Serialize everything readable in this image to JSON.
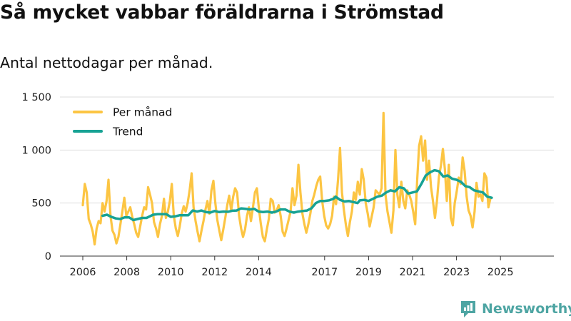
{
  "title": "Så mycket vabbar föräldrarna i Strömstad",
  "subtitle": "Antal nettodagar per månad.",
  "brand": {
    "name": "Newsworthy",
    "color": "#4ea5a3"
  },
  "colors": {
    "per_month": "#fcc543",
    "trend": "#17a294",
    "grid": "#dddddd",
    "axis": "#333333"
  },
  "chart_data": {
    "type": "line",
    "title": "Så mycket vabbar föräldrarna i Strömstad",
    "subtitle": "Antal nettodagar per månad.",
    "xlabel": "",
    "ylabel": "",
    "ylim": [
      0,
      1500
    ],
    "xlim": [
      2006,
      2025.8
    ],
    "yticks": [
      0,
      500,
      1000,
      1500
    ],
    "ytick_labels": [
      "0",
      "500",
      "1 000",
      "1 500"
    ],
    "xticks": [
      2006,
      2008,
      2010,
      2012,
      2014,
      2017,
      2019,
      2021,
      2023,
      2025
    ],
    "xtick_labels": [
      "2006",
      "2008",
      "2010",
      "2012",
      "2014",
      "2017",
      "2019",
      "2021",
      "2023",
      "2025"
    ],
    "legend": {
      "placement": "top-left",
      "entries": [
        "Per månad",
        "Trend"
      ]
    },
    "grid": true,
    "series": [
      {
        "name": "Per månad",
        "color": "#fcc543",
        "points": [
          [
            2006.0,
            480
          ],
          [
            2006.09,
            680
          ],
          [
            2006.18,
            600
          ],
          [
            2006.27,
            350
          ],
          [
            2006.36,
            300
          ],
          [
            2006.45,
            230
          ],
          [
            2006.54,
            110
          ],
          [
            2006.63,
            260
          ],
          [
            2006.72,
            330
          ],
          [
            2006.81,
            310
          ],
          [
            2006.9,
            500
          ],
          [
            2006.99,
            420
          ],
          [
            2007.08,
            520
          ],
          [
            2007.17,
            720
          ],
          [
            2007.26,
            380
          ],
          [
            2007.35,
            240
          ],
          [
            2007.44,
            200
          ],
          [
            2007.53,
            120
          ],
          [
            2007.62,
            180
          ],
          [
            2007.71,
            300
          ],
          [
            2007.8,
            420
          ],
          [
            2007.89,
            550
          ],
          [
            2007.98,
            380
          ],
          [
            2008.07,
            420
          ],
          [
            2008.16,
            460
          ],
          [
            2008.25,
            370
          ],
          [
            2008.34,
            300
          ],
          [
            2008.43,
            220
          ],
          [
            2008.52,
            180
          ],
          [
            2008.61,
            280
          ],
          [
            2008.7,
            380
          ],
          [
            2008.79,
            460
          ],
          [
            2008.88,
            440
          ],
          [
            2008.97,
            650
          ],
          [
            2009.06,
            580
          ],
          [
            2009.15,
            500
          ],
          [
            2009.24,
            320
          ],
          [
            2009.33,
            260
          ],
          [
            2009.42,
            180
          ],
          [
            2009.51,
            300
          ],
          [
            2009.6,
            380
          ],
          [
            2009.69,
            540
          ],
          [
            2009.78,
            360
          ],
          [
            2009.87,
            420
          ],
          [
            2009.96,
            520
          ],
          [
            2010.05,
            680
          ],
          [
            2010.14,
            380
          ],
          [
            2010.23,
            260
          ],
          [
            2010.32,
            190
          ],
          [
            2010.41,
            280
          ],
          [
            2010.5,
            400
          ],
          [
            2010.59,
            470
          ],
          [
            2010.68,
            420
          ],
          [
            2010.77,
            500
          ],
          [
            2010.86,
            620
          ],
          [
            2010.95,
            780
          ],
          [
            2011.04,
            460
          ],
          [
            2011.13,
            330
          ],
          [
            2011.22,
            230
          ],
          [
            2011.31,
            140
          ],
          [
            2011.4,
            240
          ],
          [
            2011.49,
            330
          ],
          [
            2011.58,
            440
          ],
          [
            2011.67,
            520
          ],
          [
            2011.76,
            400
          ],
          [
            2011.85,
            620
          ],
          [
            2011.94,
            710
          ],
          [
            2012.03,
            500
          ],
          [
            2012.12,
            340
          ],
          [
            2012.21,
            240
          ],
          [
            2012.3,
            150
          ],
          [
            2012.39,
            250
          ],
          [
            2012.48,
            360
          ],
          [
            2012.57,
            480
          ],
          [
            2012.66,
            570
          ],
          [
            2012.75,
            430
          ],
          [
            2012.84,
            560
          ],
          [
            2012.93,
            640
          ],
          [
            2013.02,
            600
          ],
          [
            2013.11,
            380
          ],
          [
            2013.2,
            260
          ],
          [
            2013.29,
            180
          ],
          [
            2013.38,
            250
          ],
          [
            2013.47,
            380
          ],
          [
            2013.56,
            460
          ],
          [
            2013.65,
            330
          ],
          [
            2013.74,
            460
          ],
          [
            2013.83,
            600
          ],
          [
            2013.92,
            640
          ],
          [
            2014.01,
            450
          ],
          [
            2014.1,
            300
          ],
          [
            2014.19,
            180
          ],
          [
            2014.28,
            140
          ],
          [
            2014.37,
            250
          ],
          [
            2014.46,
            350
          ],
          [
            2014.55,
            540
          ],
          [
            2014.64,
            520
          ],
          [
            2014.73,
            410
          ],
          [
            2014.82,
            430
          ],
          [
            2014.91,
            480
          ],
          [
            2015.0,
            380
          ],
          [
            2015.09,
            230
          ],
          [
            2015.18,
            190
          ],
          [
            2015.27,
            260
          ],
          [
            2015.36,
            340
          ],
          [
            2015.45,
            420
          ],
          [
            2015.54,
            640
          ],
          [
            2015.63,
            480
          ],
          [
            2015.72,
            570
          ],
          [
            2015.81,
            860
          ],
          [
            2015.9,
            600
          ],
          [
            2015.99,
            400
          ],
          [
            2016.08,
            300
          ],
          [
            2016.17,
            220
          ],
          [
            2016.26,
            300
          ],
          [
            2016.35,
            400
          ],
          [
            2016.44,
            520
          ],
          [
            2016.53,
            580
          ],
          [
            2016.62,
            660
          ],
          [
            2016.71,
            720
          ],
          [
            2016.8,
            750
          ],
          [
            2016.89,
            520
          ],
          [
            2016.98,
            380
          ],
          [
            2017.07,
            290
          ],
          [
            2017.16,
            260
          ],
          [
            2017.25,
            300
          ],
          [
            2017.34,
            380
          ],
          [
            2017.43,
            560
          ],
          [
            2017.52,
            490
          ],
          [
            2017.61,
            720
          ],
          [
            2017.7,
            1020
          ],
          [
            2017.79,
            600
          ],
          [
            2017.88,
            430
          ],
          [
            2017.97,
            290
          ],
          [
            2018.06,
            190
          ],
          [
            2018.15,
            320
          ],
          [
            2018.24,
            420
          ],
          [
            2018.33,
            600
          ],
          [
            2018.42,
            530
          ],
          [
            2018.51,
            700
          ],
          [
            2018.6,
            580
          ],
          [
            2018.69,
            820
          ],
          [
            2018.78,
            720
          ],
          [
            2018.87,
            500
          ],
          [
            2018.96,
            400
          ],
          [
            2019.05,
            280
          ],
          [
            2019.14,
            370
          ],
          [
            2019.23,
            460
          ],
          [
            2019.32,
            620
          ],
          [
            2019.41,
            600
          ],
          [
            2019.5,
            580
          ],
          [
            2019.59,
            640
          ],
          [
            2019.68,
            1350
          ],
          [
            2019.77,
            580
          ],
          [
            2019.86,
            420
          ],
          [
            2019.95,
            320
          ],
          [
            2020.04,
            220
          ],
          [
            2020.13,
            430
          ],
          [
            2020.22,
            1000
          ],
          [
            2020.31,
            580
          ],
          [
            2020.4,
            460
          ],
          [
            2020.49,
            700
          ],
          [
            2020.58,
            520
          ],
          [
            2020.67,
            450
          ],
          [
            2020.76,
            620
          ],
          [
            2020.85,
            580
          ],
          [
            2020.94,
            520
          ],
          [
            2021.03,
            420
          ],
          [
            2021.12,
            300
          ],
          [
            2021.21,
            720
          ],
          [
            2021.3,
            1040
          ],
          [
            2021.39,
            1130
          ],
          [
            2021.48,
            900
          ],
          [
            2021.57,
            1090
          ],
          [
            2021.66,
            720
          ],
          [
            2021.75,
            900
          ],
          [
            2021.84,
            650
          ],
          [
            2021.93,
            520
          ],
          [
            2022.02,
            360
          ],
          [
            2022.11,
            520
          ],
          [
            2022.2,
            750
          ],
          [
            2022.29,
            850
          ],
          [
            2022.38,
            1010
          ],
          [
            2022.47,
            820
          ],
          [
            2022.56,
            520
          ],
          [
            2022.65,
            860
          ],
          [
            2022.74,
            360
          ],
          [
            2022.83,
            290
          ],
          [
            2022.92,
            500
          ],
          [
            2023.01,
            610
          ],
          [
            2023.1,
            740
          ],
          [
            2023.19,
            680
          ],
          [
            2023.28,
            930
          ],
          [
            2023.37,
            800
          ],
          [
            2023.46,
            560
          ],
          [
            2023.55,
            430
          ],
          [
            2023.64,
            380
          ],
          [
            2023.73,
            270
          ],
          [
            2023.82,
            420
          ],
          [
            2023.91,
            690
          ],
          [
            2024.0,
            560
          ],
          [
            2024.09,
            580
          ],
          [
            2024.18,
            520
          ],
          [
            2024.27,
            780
          ],
          [
            2024.36,
            740
          ],
          [
            2024.45,
            460
          ],
          [
            2024.54,
            540
          ]
        ]
      },
      {
        "name": "Trend",
        "color": "#17a294",
        "points": [
          [
            2006.9,
            380
          ],
          [
            2007.1,
            390
          ],
          [
            2007.3,
            370
          ],
          [
            2007.5,
            355
          ],
          [
            2007.7,
            350
          ],
          [
            2007.9,
            365
          ],
          [
            2008.1,
            365
          ],
          [
            2008.3,
            340
          ],
          [
            2008.5,
            350
          ],
          [
            2008.7,
            360
          ],
          [
            2008.9,
            360
          ],
          [
            2009.0,
            370
          ],
          [
            2009.2,
            390
          ],
          [
            2009.4,
            395
          ],
          [
            2009.6,
            395
          ],
          [
            2009.8,
            395
          ],
          [
            2010.0,
            370
          ],
          [
            2010.2,
            375
          ],
          [
            2010.4,
            385
          ],
          [
            2010.6,
            385
          ],
          [
            2010.8,
            385
          ],
          [
            2011.0,
            430
          ],
          [
            2011.2,
            420
          ],
          [
            2011.4,
            430
          ],
          [
            2011.6,
            415
          ],
          [
            2011.8,
            410
          ],
          [
            2012.0,
            425
          ],
          [
            2012.2,
            415
          ],
          [
            2012.4,
            420
          ],
          [
            2012.6,
            418
          ],
          [
            2012.8,
            428
          ],
          [
            2013.0,
            430
          ],
          [
            2013.2,
            450
          ],
          [
            2013.4,
            445
          ],
          [
            2013.6,
            440
          ],
          [
            2013.8,
            445
          ],
          [
            2014.0,
            420
          ],
          [
            2014.2,
            415
          ],
          [
            2014.4,
            420
          ],
          [
            2014.6,
            410
          ],
          [
            2014.8,
            420
          ],
          [
            2015.0,
            440
          ],
          [
            2015.2,
            440
          ],
          [
            2015.4,
            420
          ],
          [
            2015.6,
            410
          ],
          [
            2015.8,
            420
          ],
          [
            2016.0,
            425
          ],
          [
            2016.2,
            430
          ],
          [
            2016.4,
            450
          ],
          [
            2016.6,
            500
          ],
          [
            2016.8,
            520
          ],
          [
            2017.0,
            520
          ],
          [
            2017.2,
            525
          ],
          [
            2017.4,
            540
          ],
          [
            2017.5,
            560
          ],
          [
            2017.7,
            530
          ],
          [
            2017.9,
            515
          ],
          [
            2018.1,
            520
          ],
          [
            2018.3,
            510
          ],
          [
            2018.5,
            500
          ],
          [
            2018.6,
            525
          ],
          [
            2018.8,
            530
          ],
          [
            2019.0,
            520
          ],
          [
            2019.2,
            540
          ],
          [
            2019.4,
            560
          ],
          [
            2019.6,
            570
          ],
          [
            2019.8,
            600
          ],
          [
            2020.0,
            620
          ],
          [
            2020.2,
            610
          ],
          [
            2020.4,
            650
          ],
          [
            2020.6,
            640
          ],
          [
            2020.8,
            590
          ],
          [
            2021.0,
            600
          ],
          [
            2021.2,
            610
          ],
          [
            2021.4,
            680
          ],
          [
            2021.6,
            760
          ],
          [
            2021.8,
            790
          ],
          [
            2022.0,
            810
          ],
          [
            2022.2,
            800
          ],
          [
            2022.4,
            750
          ],
          [
            2022.6,
            760
          ],
          [
            2022.8,
            730
          ],
          [
            2023.0,
            720
          ],
          [
            2023.2,
            700
          ],
          [
            2023.4,
            660
          ],
          [
            2023.6,
            650
          ],
          [
            2023.8,
            620
          ],
          [
            2024.0,
            610
          ],
          [
            2024.2,
            600
          ],
          [
            2024.4,
            560
          ],
          [
            2024.6,
            550
          ]
        ]
      }
    ]
  }
}
